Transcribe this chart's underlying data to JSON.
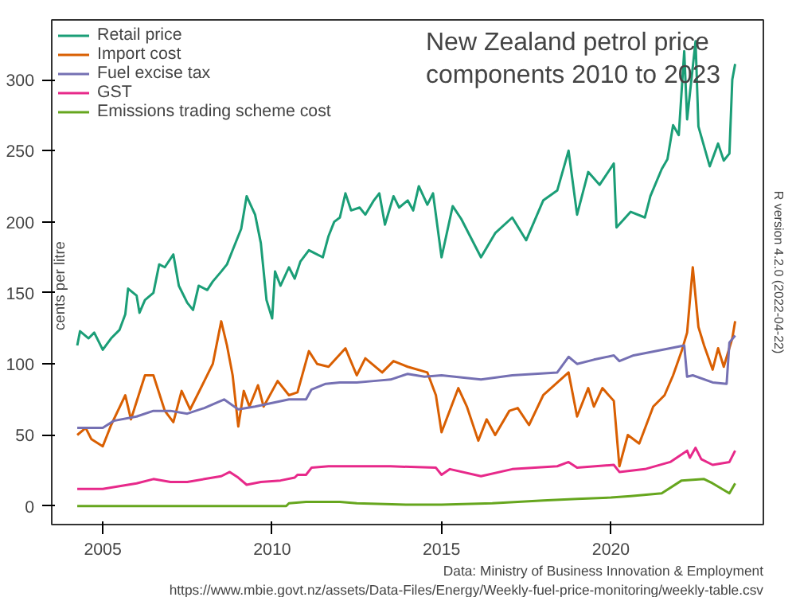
{
  "chart_data": {
    "type": "line",
    "title": "New Zealand petrol price components 2010 to 2023",
    "ylabel": "cents per litre",
    "annotations": [
      "Data: Ministry of Business Innovation & Employment",
      "https://www.mbie.govt.nz/assets/Data-Files/Energy/Weekly-fuel-price-monitoring/weekly-table.csv",
      "R version 4.2.0 (2022-04-22)"
    ],
    "xlim": [
      "2003-07",
      "2024-07"
    ],
    "xticks": [
      "2005",
      "2010",
      "2015",
      "2020"
    ],
    "ylim": [
      -13,
      342
    ],
    "yticks": [
      0,
      50,
      100,
      150,
      200,
      250,
      300
    ],
    "grid": false,
    "legend": "top left",
    "line_style": "solid",
    "marker": "none",
    "series": [
      {
        "name": "Retail price",
        "color": "#1b9e77",
        "x": [
          "2004-04",
          "2004-05",
          "2004-08",
          "2004-10",
          "2005-01",
          "2005-04",
          "2005-07",
          "2005-09",
          "2005-10",
          "2006-01",
          "2006-02",
          "2006-04",
          "2006-07",
          "2006-09",
          "2006-11",
          "2007-02",
          "2007-04",
          "2007-07",
          "2007-09",
          "2007-11",
          "2008-02",
          "2008-04",
          "2008-07",
          "2008-09",
          "2008-11",
          "2009-02",
          "2009-04",
          "2009-07",
          "2009-09",
          "2009-11",
          "2010-01",
          "2010-02",
          "2010-04",
          "2010-07",
          "2010-09",
          "2010-11",
          "2011-02",
          "2011-04",
          "2011-07",
          "2011-09",
          "2011-11",
          "2012-01",
          "2012-03",
          "2012-05",
          "2012-08",
          "2012-10",
          "2013-01",
          "2013-03",
          "2013-05",
          "2013-08",
          "2013-10",
          "2014-01",
          "2014-03",
          "2014-05",
          "2014-08",
          "2014-10",
          "2015-01",
          "2015-05",
          "2015-08",
          "2016-03",
          "2016-08",
          "2017-02",
          "2017-07",
          "2018-01",
          "2018-06",
          "2018-10",
          "2019-01",
          "2019-05",
          "2019-09",
          "2020-02",
          "2020-03",
          "2020-08",
          "2021-01",
          "2021-03",
          "2021-07",
          "2021-09",
          "2021-11",
          "2022-01",
          "2022-03",
          "2022-04",
          "2022-07",
          "2022-08",
          "2022-12",
          "2023-03",
          "2023-05",
          "2023-07",
          "2023-08",
          "2023-09"
        ],
        "values": [
          113,
          123,
          118,
          122,
          110,
          118,
          124,
          135,
          153,
          148,
          136,
          145,
          150,
          170,
          168,
          177,
          155,
          143,
          138,
          155,
          152,
          158,
          165,
          170,
          180,
          195,
          218,
          205,
          185,
          145,
          132,
          165,
          155,
          168,
          160,
          172,
          180,
          178,
          175,
          190,
          200,
          203,
          220,
          208,
          210,
          205,
          215,
          220,
          198,
          218,
          210,
          215,
          208,
          225,
          212,
          220,
          175,
          211,
          202,
          175,
          192,
          203,
          187,
          215,
          222,
          250,
          205,
          235,
          226,
          241,
          196,
          207,
          203,
          218,
          237,
          244,
          268,
          261,
          320,
          272,
          327,
          267,
          239,
          255,
          243,
          248,
          300,
          311
        ]
      },
      {
        "name": "Import cost",
        "color": "#d95f02",
        "x": [
          "2004-04",
          "2004-07",
          "2004-09",
          "2005-01",
          "2005-04",
          "2005-09",
          "2005-11",
          "2006-04",
          "2006-07",
          "2006-11",
          "2007-02",
          "2007-05",
          "2007-08",
          "2008-01",
          "2008-04",
          "2008-07",
          "2008-09",
          "2008-11",
          "2009-01",
          "2009-03",
          "2009-05",
          "2009-08",
          "2009-10",
          "2010-03",
          "2010-07",
          "2010-10",
          "2011-02",
          "2011-05",
          "2011-09",
          "2012-03",
          "2012-07",
          "2012-10",
          "2013-04",
          "2013-08",
          "2014-01",
          "2014-08",
          "2014-11",
          "2015-01",
          "2015-07",
          "2015-10",
          "2016-02",
          "2016-05",
          "2016-08",
          "2017-01",
          "2017-04",
          "2017-08",
          "2018-01",
          "2018-05",
          "2018-10",
          "2019-01",
          "2019-05",
          "2019-07",
          "2019-10",
          "2020-02",
          "2020-04",
          "2020-07",
          "2020-11",
          "2021-04",
          "2021-08",
          "2021-11",
          "2022-02",
          "2022-04",
          "2022-06",
          "2022-08",
          "2022-10",
          "2023-01",
          "2023-03",
          "2023-05",
          "2023-08",
          "2023-09"
        ],
        "values": [
          50,
          55,
          47,
          42,
          57,
          78,
          61,
          92,
          92,
          67,
          59,
          81,
          68,
          88,
          100,
          130,
          113,
          92,
          56,
          81,
          70,
          85,
          70,
          88,
          78,
          80,
          109,
          100,
          98,
          111,
          92,
          104,
          94,
          102,
          98,
          94,
          78,
          52,
          83,
          70,
          46,
          61,
          50,
          67,
          69,
          57,
          78,
          85,
          94,
          63,
          83,
          70,
          83,
          74,
          28,
          50,
          44,
          70,
          78,
          92,
          109,
          122,
          168,
          126,
          113,
          96,
          111,
          98,
          118,
          130
        ]
      },
      {
        "name": "Fuel excise tax",
        "color": "#7570b3",
        "x": [
          "2004-04",
          "2005-01",
          "2005-05",
          "2006-01",
          "2006-07",
          "2007-01",
          "2007-07",
          "2008-01",
          "2008-08",
          "2009-01",
          "2009-07",
          "2010-07",
          "2011-01",
          "2011-03",
          "2011-08",
          "2012-01",
          "2012-07",
          "2013-01",
          "2013-07",
          "2014-01",
          "2014-07",
          "2015-01",
          "2016-03",
          "2017-02",
          "2018-06",
          "2018-10",
          "2019-01",
          "2019-07",
          "2020-02",
          "2020-04",
          "2020-09",
          "2021-10",
          "2022-03",
          "2022-04",
          "2022-06",
          "2023-01",
          "2023-06",
          "2023-07",
          "2023-09"
        ],
        "values": [
          55,
          55,
          60,
          63,
          67,
          67,
          65,
          69,
          75,
          68,
          70,
          75,
          75,
          82,
          86,
          87,
          87,
          88,
          89,
          93,
          91,
          92,
          89,
          92,
          94,
          105,
          100,
          103,
          106,
          102,
          106,
          111,
          113,
          91,
          92,
          87,
          86,
          115,
          120
        ]
      },
      {
        "name": "GST",
        "color": "#e7298a",
        "x": [
          "2004-04",
          "2005-01",
          "2005-07",
          "2006-01",
          "2006-07",
          "2007-01",
          "2007-07",
          "2008-01",
          "2008-07",
          "2008-10",
          "2009-01",
          "2009-04",
          "2009-09",
          "2010-04",
          "2010-09",
          "2010-10",
          "2011-01",
          "2011-03",
          "2011-09",
          "2012-07",
          "2013-07",
          "2014-11",
          "2015-01",
          "2015-04",
          "2016-03",
          "2017-02",
          "2018-06",
          "2018-10",
          "2019-01",
          "2020-02",
          "2020-04",
          "2021-01",
          "2021-10",
          "2022-04",
          "2022-05",
          "2022-07",
          "2022-09",
          "2023-01",
          "2023-07",
          "2023-09"
        ],
        "values": [
          12,
          12,
          14,
          16,
          19,
          17,
          17,
          19,
          21,
          24,
          20,
          15,
          17,
          18,
          20,
          22,
          22,
          27,
          28,
          28,
          28,
          27,
          22,
          26,
          21,
          26,
          28,
          31,
          27,
          29,
          24,
          26,
          31,
          39,
          34,
          41,
          33,
          29,
          31,
          39
        ]
      },
      {
        "name": "Emissions trading scheme cost",
        "color": "#66a61e",
        "x": [
          "2004-04",
          "2010-06",
          "2010-07",
          "2011-01",
          "2012-01",
          "2012-07",
          "2014-01",
          "2015-01",
          "2016-07",
          "2018-01",
          "2019-01",
          "2020-01",
          "2020-08",
          "2021-07",
          "2022-02",
          "2022-10",
          "2023-01",
          "2023-07",
          "2023-09"
        ],
        "values": [
          0,
          0,
          2,
          3,
          3,
          2,
          1,
          1,
          2,
          4,
          5,
          6,
          7,
          9,
          18,
          19,
          16,
          9,
          16
        ]
      }
    ]
  }
}
